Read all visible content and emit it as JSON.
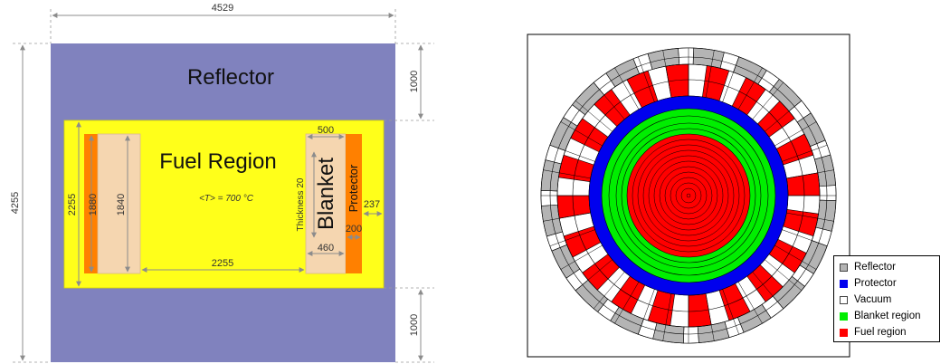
{
  "colors": {
    "reflector": "#8082be",
    "fuel_plate": "#ffff1a",
    "blanket": "#f5d6b0",
    "protector": "#ff8000",
    "dimension": "#8c8c8c",
    "core_fuel": "#ff0000",
    "core_blanket": "#00ee00",
    "core_protector": "#0000ee",
    "core_reflector": "#b4b4b4"
  },
  "left_diagram": {
    "reflector_label": "Reflector",
    "fuel_region_label": "Fuel Region",
    "blanket_label": "Blanket",
    "protector_label": "Protector",
    "temperature_label": "<T> = 700 °C",
    "thickness_label": "Thickness 20",
    "dims": {
      "width_total": "4529",
      "height_total": "4255",
      "top_reflector": "1000",
      "bottom_reflector": "1000",
      "core_height": "2255",
      "inner_1880": "1880",
      "inner_1840": "1840",
      "fuel_width": "2255",
      "blanket_top": "500",
      "blanket_bottom": "460",
      "protector_200": "200",
      "gap_237": "237"
    }
  },
  "legend": {
    "items": [
      {
        "label": "Reflector",
        "color": "#b4b4b4"
      },
      {
        "label": "Protector",
        "color": "#0000ee"
      },
      {
        "label": "Vacuum",
        "color": "#ffffff"
      },
      {
        "label": "Blanket region",
        "color": "#00ee00"
      },
      {
        "label": "Fuel region",
        "color": "#ff0000"
      }
    ]
  }
}
